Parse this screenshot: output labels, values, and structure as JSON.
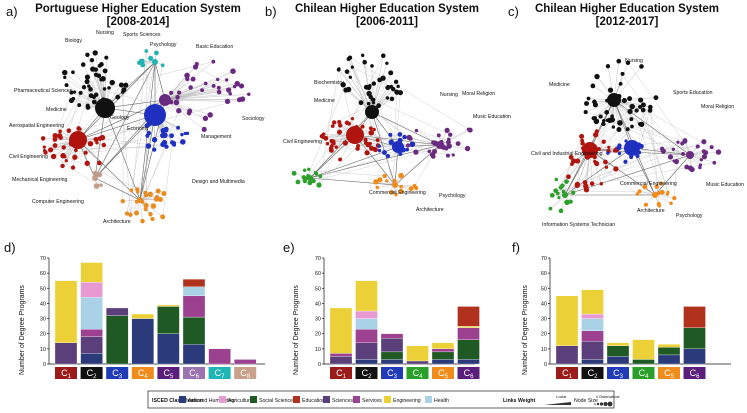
{
  "colors": {
    "arts": "#2b3a7a",
    "agriculture": "#e79ad2",
    "social": "#1f5a24",
    "education": "#b0311c",
    "sciences": "#5a3f7a",
    "services": "#9c4190",
    "engineering": "#ecd037",
    "health": "#a9d2e6"
  },
  "networks": [
    {
      "panel": "a)",
      "title_line1": "Portuguese Higher Education System",
      "title_line2": "[2008-2014]",
      "labels": [
        "Nursing",
        "Biology",
        "Sports Sciences",
        "Psychology",
        "Basic Education",
        "Pharmaceutical Sciences",
        "Medicine",
        "Geology",
        "Economy",
        "Sociology",
        "Aerospatial Engineering",
        "Management",
        "Civil Engineering",
        "Mechanical Engineering",
        "Design and Multimedia",
        "Computer Engineering",
        "Architecture"
      ]
    },
    {
      "panel": "b)",
      "title_line1": "Chilean Higher Education System",
      "title_line2": "[2006-2011]",
      "labels": [
        "Biochemistry",
        "Nursing",
        "Moral Religion",
        "Medicine",
        "Music Education",
        "Civil Engineering",
        "Commercial Engineering",
        "Psychology",
        "Architecture"
      ]
    },
    {
      "panel": "c)",
      "title_line1": "Chilean Higher Education System",
      "title_line2": "[2012-2017]",
      "labels": [
        "Nursing",
        "Medicine",
        "Sports Education",
        "Moral Religion",
        "Civil and Industrial Engineering",
        "Music Education",
        "Commercial Engineering",
        "Architecture",
        "Psychology",
        "Information Systems Technician"
      ]
    }
  ],
  "chart_data": [
    {
      "panel": "d)",
      "type": "bar",
      "stacked": true,
      "ylabel": "Number of Degree Programs",
      "ylim": [
        0,
        70
      ],
      "yticks": [
        0,
        10,
        20,
        30,
        40,
        50,
        60,
        70
      ],
      "categories": [
        "C1",
        "C2",
        "C3",
        "C4",
        "C5",
        "C6",
        "C7",
        "C8"
      ],
      "category_colors": [
        "#9b1a1a",
        "#111111",
        "#1f3bb8",
        "#f08c1c",
        "#5a1f7a",
        "#9c72b0",
        "#1fb5b5",
        "#c9a08a"
      ],
      "series": [
        {
          "name": "Arts and Humanities",
          "key": "arts",
          "values": [
            0,
            7,
            0,
            30,
            20,
            13,
            0,
            0
          ]
        },
        {
          "name": "Social Sciences",
          "key": "social",
          "values": [
            0,
            0,
            32,
            0,
            18,
            18,
            0,
            0
          ]
        },
        {
          "name": "Sciences",
          "key": "sciences",
          "values": [
            14,
            11,
            5,
            0,
            0,
            0,
            0,
            0
          ]
        },
        {
          "name": "Services",
          "key": "services",
          "values": [
            0,
            5,
            0,
            0,
            0,
            14,
            10,
            3
          ]
        },
        {
          "name": "Health",
          "key": "health",
          "values": [
            0,
            21,
            0,
            0,
            0,
            6,
            0,
            0
          ]
        },
        {
          "name": "Agriculture",
          "key": "agriculture",
          "values": [
            0,
            10,
            0,
            0,
            0,
            0,
            0,
            0
          ]
        },
        {
          "name": "Engineering",
          "key": "engineering",
          "values": [
            41,
            13,
            0,
            3,
            1,
            0,
            0,
            0
          ]
        },
        {
          "name": "Education",
          "key": "education",
          "values": [
            0,
            0,
            0,
            0,
            0,
            5,
            0,
            0
          ]
        }
      ]
    },
    {
      "panel": "e)",
      "type": "bar",
      "stacked": true,
      "ylabel": "Number of Degree Programs",
      "ylim": [
        0,
        70
      ],
      "yticks": [
        0,
        10,
        20,
        30,
        40,
        50,
        60,
        70
      ],
      "categories": [
        "C1",
        "C2",
        "C3",
        "C4",
        "C5",
        "C6"
      ],
      "category_colors": [
        "#9b1a1a",
        "#111111",
        "#1f3bb8",
        "#2aa02a",
        "#f08c1c",
        "#5a1f7a"
      ],
      "series": [
        {
          "name": "Arts and Humanities",
          "key": "arts",
          "values": [
            0,
            3,
            3,
            0,
            3,
            3
          ]
        },
        {
          "name": "Social Sciences",
          "key": "social",
          "values": [
            0,
            0,
            5,
            0,
            5,
            13
          ]
        },
        {
          "name": "Sciences",
          "key": "sciences",
          "values": [
            5,
            11,
            9,
            2,
            0,
            0
          ]
        },
        {
          "name": "Services",
          "key": "services",
          "values": [
            2,
            9,
            3,
            0,
            2,
            8
          ]
        },
        {
          "name": "Health",
          "key": "health",
          "values": [
            0,
            7,
            0,
            0,
            0,
            0
          ]
        },
        {
          "name": "Agriculture",
          "key": "agriculture",
          "values": [
            0,
            5,
            0,
            0,
            0,
            0
          ]
        },
        {
          "name": "Engineering",
          "key": "engineering",
          "values": [
            30,
            20,
            0,
            10,
            4,
            1
          ]
        },
        {
          "name": "Education",
          "key": "education",
          "values": [
            0,
            0,
            0,
            0,
            0,
            13
          ]
        }
      ]
    },
    {
      "panel": "f)",
      "type": "bar",
      "stacked": true,
      "ylabel": "Number of Degree Programs",
      "ylim": [
        0,
        70
      ],
      "yticks": [
        0,
        10,
        20,
        30,
        40,
        50,
        60,
        70
      ],
      "categories": [
        "C1",
        "C2",
        "C3",
        "C4",
        "C5",
        "C6"
      ],
      "category_colors": [
        "#9b1a1a",
        "#111111",
        "#1f3bb8",
        "#2aa02a",
        "#f08c1c",
        "#5a1f7a"
      ],
      "series": [
        {
          "name": "Arts and Humanities",
          "key": "arts",
          "values": [
            0,
            3,
            5,
            0,
            6,
            10
          ]
        },
        {
          "name": "Social Sciences",
          "key": "social",
          "values": [
            0,
            0,
            7,
            3,
            5,
            14
          ]
        },
        {
          "name": "Sciences",
          "key": "sciences",
          "values": [
            12,
            12,
            0,
            0,
            0,
            0
          ]
        },
        {
          "name": "Services",
          "key": "services",
          "values": [
            0,
            7,
            0,
            0,
            0,
            0
          ]
        },
        {
          "name": "Health",
          "key": "health",
          "values": [
            0,
            8,
            0,
            0,
            0,
            0
          ]
        },
        {
          "name": "Agriculture",
          "key": "agriculture",
          "values": [
            0,
            3,
            0,
            0,
            0,
            0
          ]
        },
        {
          "name": "Engineering",
          "key": "engineering",
          "values": [
            33,
            16,
            2,
            13,
            2,
            0
          ]
        },
        {
          "name": "Education",
          "key": "education",
          "values": [
            0,
            0,
            0,
            0,
            0,
            14
          ]
        }
      ]
    }
  ],
  "legend": {
    "isced_title": "ISCED Classification",
    "items": [
      {
        "key": "arts",
        "label": "Arts and Humanities"
      },
      {
        "key": "agriculture",
        "label": "Agriculture"
      },
      {
        "key": "social",
        "label": "Social Sciences"
      },
      {
        "key": "education",
        "label": "Education"
      },
      {
        "key": "sciences",
        "label": "Sciences"
      },
      {
        "key": "services",
        "label": "Services"
      },
      {
        "key": "engineering",
        "label": "Engineering"
      },
      {
        "key": "health",
        "label": "Health"
      }
    ],
    "links_weight": "Links Weight",
    "tvalue": "t-value",
    "node_size": "Node Size",
    "observations": "# Observations"
  }
}
